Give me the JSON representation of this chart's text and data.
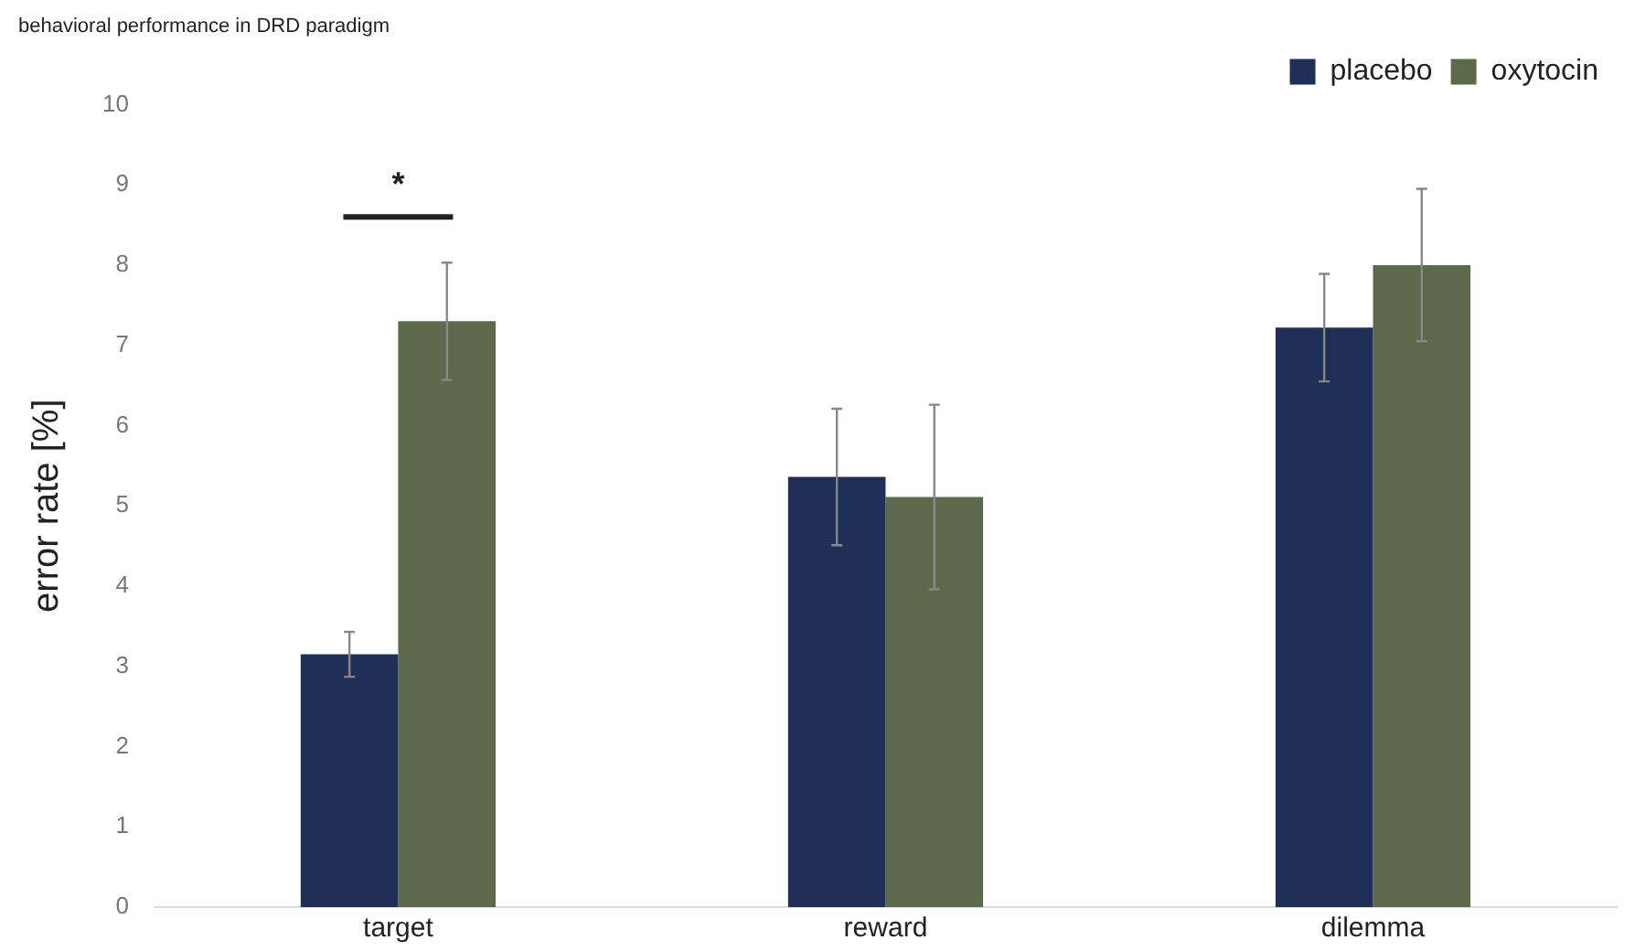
{
  "chart_data": {
    "type": "bar",
    "title": "behavioral performance in DRD paradigm",
    "ylabel": "error rate [%]",
    "categories": [
      "target",
      "reward",
      "dilemma"
    ],
    "series": [
      {
        "name": "placebo",
        "color": "#1f2f55",
        "values": [
          3.15,
          5.36,
          7.22
        ],
        "errors": [
          0.28,
          0.85,
          0.67
        ]
      },
      {
        "name": "oxytocin",
        "color": "#5b6a4a",
        "values": [
          7.3,
          5.11,
          8.0
        ],
        "errors": [
          0.73,
          1.15,
          0.95
        ]
      }
    ],
    "ylim": [
      0,
      10
    ],
    "yticks": [
      0,
      1,
      2,
      3,
      4,
      5,
      6,
      7,
      8,
      9,
      10
    ],
    "grid": false,
    "legend": "top right",
    "annotations": [
      "*"
    ]
  }
}
